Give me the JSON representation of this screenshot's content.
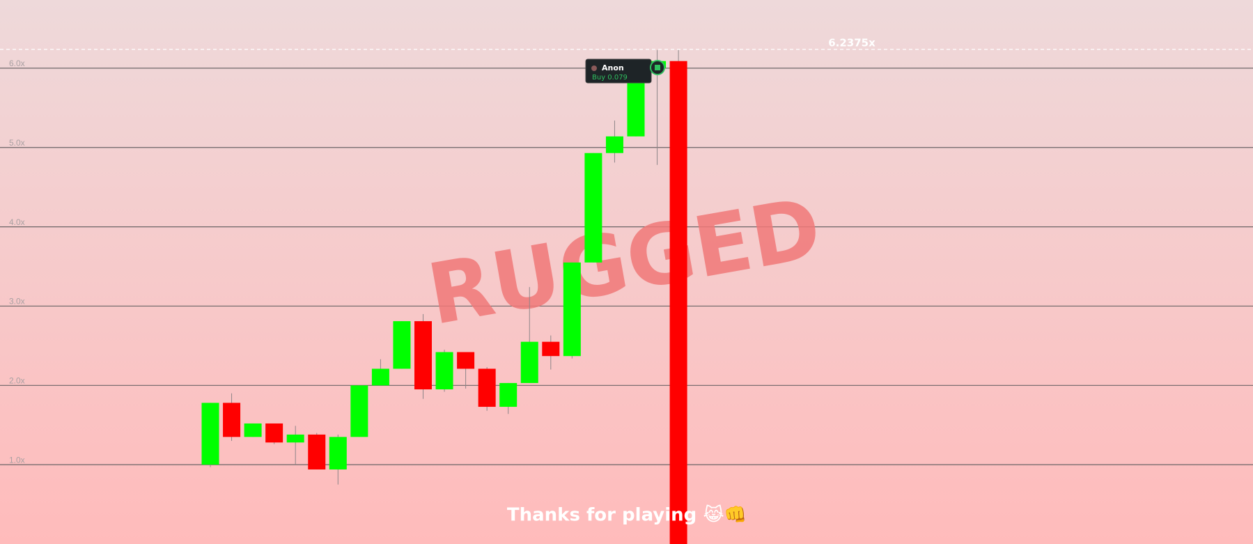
{
  "chart_data": {
    "type": "candlestick",
    "watermark": "RUGGED",
    "footer": "Thanks for playing 😹👊",
    "open": [
      1.0,
      1.78,
      1.35,
      1.52,
      1.28,
      1.38,
      0.94,
      1.35,
      2.0,
      2.21,
      2.81,
      1.95,
      2.42,
      2.21,
      1.73,
      2.03,
      2.55,
      2.37,
      3.55,
      4.93,
      5.14,
      6.0,
      6.09
    ],
    "close": [
      1.78,
      1.35,
      1.52,
      1.28,
      1.38,
      0.94,
      1.35,
      2.0,
      2.21,
      2.81,
      1.95,
      2.42,
      2.21,
      1.73,
      2.03,
      2.55,
      2.37,
      3.55,
      4.93,
      5.14,
      6.0,
      6.09,
      0.0
    ],
    "high": [
      1.78,
      1.9,
      1.52,
      1.52,
      1.49,
      1.4,
      1.38,
      2.0,
      2.33,
      2.81,
      2.9,
      2.45,
      2.42,
      2.23,
      2.03,
      3.24,
      2.63,
      3.55,
      4.93,
      5.34,
      6.0,
      6.23,
      6.23
    ],
    "low": [
      0.97,
      1.3,
      1.35,
      1.26,
      1.0,
      0.94,
      0.75,
      1.35,
      2.0,
      2.21,
      1.83,
      1.92,
      1.96,
      1.68,
      1.64,
      2.03,
      2.2,
      2.34,
      3.55,
      4.81,
      5.14,
      4.78,
      0.0
    ],
    "up_color": "#00ff00",
    "down_color": "#ff0000",
    "ylim": [
      0,
      6.86
    ],
    "yticks": [
      {
        "value": 1,
        "label": "1.0x"
      },
      {
        "value": 2,
        "label": "2.0x"
      },
      {
        "value": 3,
        "label": "3.0x"
      },
      {
        "value": 4,
        "label": "4.0x"
      },
      {
        "value": 5,
        "label": "5.0x"
      },
      {
        "value": 6,
        "label": "6.0x"
      }
    ],
    "grid": true,
    "price_line": {
      "value": 6.2375,
      "label": "6.2375x"
    },
    "tooltip": {
      "name": "Anon",
      "text": "Buy 0.079"
    }
  }
}
